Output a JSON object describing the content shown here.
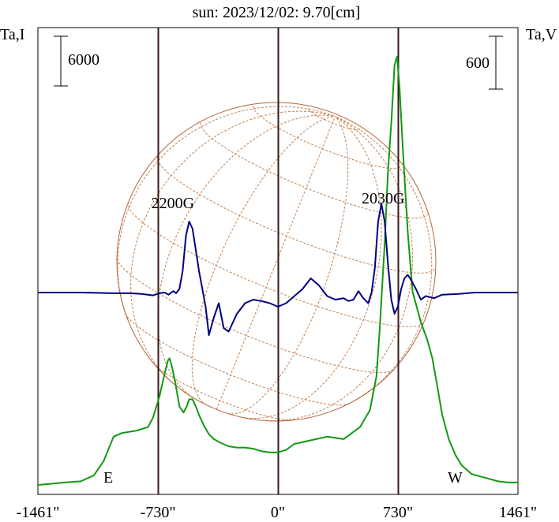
{
  "title": "sun: 2023/12/02: 9.70[cm]",
  "left_axis_label": "Ta,I",
  "right_axis_label": "Ta,V",
  "left_scale_label": "6000",
  "right_scale_label": "600",
  "east_label": "E",
  "west_label": "W",
  "annotations": [
    {
      "text": "2200G",
      "x": -640
    },
    {
      "text": "2030G",
      "x": 640
    }
  ],
  "colors": {
    "frame": "#000000",
    "vertical_lines": "#3b1a1a",
    "disk": "#b5653a",
    "grid": "#c0804f",
    "title": "#000080",
    "stokes_v": "#000080",
    "stokes_i": "#119911"
  },
  "chart_data": {
    "type": "line",
    "x_unit": "arcsec",
    "xlim": [
      -1461,
      1461
    ],
    "x_ticks": [
      {
        "value": -1461,
        "label": "-1461\""
      },
      {
        "value": -730,
        "label": "-730\""
      },
      {
        "value": 0,
        "label": "0\""
      },
      {
        "value": 730,
        "label": "730\""
      },
      {
        "value": 1461,
        "label": "1461\""
      }
    ],
    "vertical_lines": [
      -730,
      0,
      730
    ],
    "series": [
      {
        "color": "#119911",
        "x": [
          -1461,
          -1380,
          -1300,
          -1200,
          -1120,
          -1060,
          -1000,
          -950,
          -860,
          -790,
          -760,
          -720,
          -690,
          -670,
          -660,
          -645,
          -625,
          -600,
          -575,
          -555,
          -540,
          -520,
          -500,
          -480,
          -450,
          -420,
          -390,
          -350,
          -300,
          -250,
          -200,
          -150,
          -100,
          -50,
          0,
          50,
          100,
          200,
          300,
          400,
          500,
          560,
          600,
          620,
          650,
          670,
          690,
          710,
          725,
          740,
          760,
          790,
          820,
          870,
          910,
          940,
          970,
          1000,
          1040,
          1080,
          1120,
          1180,
          1260,
          1340,
          1400,
          1461
        ],
        "y": [
          0.0,
          0.01,
          0.02,
          0.03,
          0.08,
          0.2,
          0.4,
          0.43,
          0.45,
          0.48,
          0.56,
          0.74,
          0.92,
          1.03,
          1.05,
          0.98,
          0.85,
          0.65,
          0.6,
          0.65,
          0.71,
          0.71,
          0.65,
          0.58,
          0.49,
          0.42,
          0.38,
          0.35,
          0.32,
          0.31,
          0.31,
          0.3,
          0.28,
          0.27,
          0.27,
          0.29,
          0.34,
          0.37,
          0.4,
          0.38,
          0.48,
          0.62,
          0.9,
          1.3,
          2.0,
          2.6,
          3.0,
          3.48,
          3.55,
          3.3,
          2.8,
          2.1,
          1.6,
          1.35,
          1.2,
          1.05,
          0.82,
          0.58,
          0.38,
          0.25,
          0.16,
          0.09,
          0.06,
          0.03,
          0.02,
          0.02
        ]
      },
      {
        "color": "#000080",
        "x": [
          -1461,
          -1200,
          -1000,
          -900,
          -830,
          -760,
          -720,
          -690,
          -665,
          -650,
          -635,
          -620,
          -600,
          -580,
          -560,
          -540,
          -520,
          -500,
          -480,
          -460,
          -440,
          -420,
          -390,
          -360,
          -330,
          -300,
          -250,
          -200,
          -150,
          -100,
          -50,
          0,
          50,
          100,
          150,
          200,
          250,
          300,
          350,
          400,
          430,
          460,
          490,
          520,
          550,
          570,
          590,
          610,
          630,
          650,
          670,
          690,
          710,
          730,
          750,
          770,
          790,
          810,
          840,
          870,
          900,
          950,
          1000,
          1100,
          1200,
          1300,
          1461
        ],
        "y": [
          0.0,
          0.0,
          -0.01,
          -0.01,
          -0.02,
          -0.04,
          -0.01,
          0.0,
          -0.03,
          0.0,
          0.02,
          -0.01,
          0.05,
          0.3,
          0.8,
          1.0,
          0.9,
          0.6,
          0.3,
          0.05,
          -0.2,
          -0.6,
          -0.35,
          -0.15,
          -0.5,
          -0.55,
          -0.3,
          -0.15,
          -0.1,
          -0.12,
          -0.15,
          -0.2,
          -0.15,
          -0.05,
          0.05,
          0.2,
          0.1,
          -0.05,
          -0.1,
          -0.08,
          -0.12,
          -0.1,
          0.02,
          -0.08,
          -0.15,
          0.0,
          0.35,
          1.0,
          1.25,
          1.0,
          0.4,
          -0.1,
          -0.3,
          -0.2,
          0.05,
          0.2,
          0.25,
          0.18,
          0.05,
          -0.1,
          -0.05,
          -0.08,
          -0.03,
          -0.02,
          0.0,
          0.0,
          0.0
        ]
      }
    ]
  }
}
